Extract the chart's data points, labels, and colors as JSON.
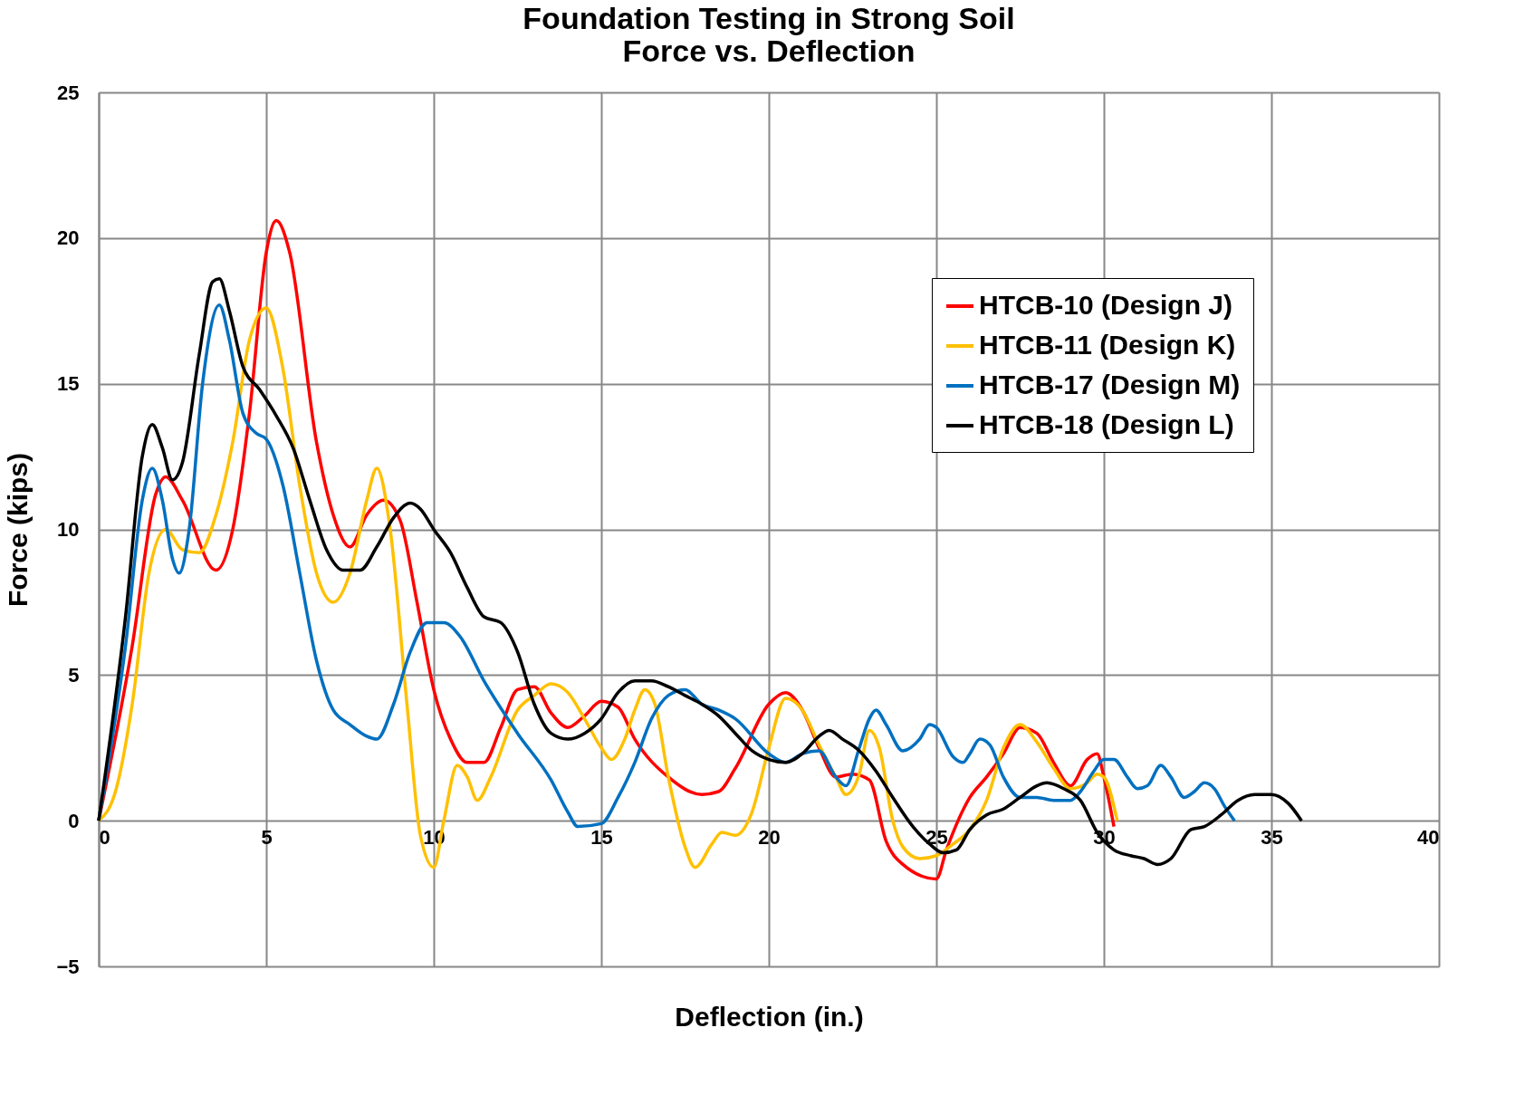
{
  "chart_data": {
    "type": "line",
    "title": "Foundation Testing in Strong Soil\nForce vs. Deflection",
    "xlabel": "Deflection (in.)",
    "ylabel": "Force (kips)",
    "xlim": [
      0,
      40
    ],
    "xticks": [
      0,
      5,
      10,
      15,
      20,
      25,
      30,
      35,
      40
    ],
    "ylim": [
      -5,
      25
    ],
    "yticks": [
      -5,
      0,
      5,
      10,
      15,
      20,
      25
    ],
    "grid": true,
    "legend": "top right",
    "marker": "none",
    "line_style": "solid",
    "series": [
      {
        "name": "HTCB-10 (Design J)",
        "color": "#ff0000",
        "x": [
          0,
          1,
          1.7,
          2,
          2.5,
          3.5,
          4,
          4.5,
          5,
          5.3,
          5.7,
          6.5,
          7,
          7.5,
          8,
          8.5,
          9,
          9.5,
          10,
          10.5,
          11,
          11.5,
          12,
          12.5,
          13,
          13.5,
          14,
          14.5,
          15,
          15.5,
          16,
          17,
          18,
          18.5,
          19,
          20,
          20.5,
          21,
          21.5,
          22,
          22.5,
          23,
          23.5,
          24,
          25,
          25.3,
          26,
          26.5,
          27,
          27.5,
          28,
          28.5,
          29,
          29.5,
          29.8,
          30,
          30.3
        ],
        "values": [
          0,
          6,
          11.2,
          11.8,
          11,
          8.6,
          10,
          14,
          19.5,
          20.6,
          19.5,
          13,
          10.5,
          9.4,
          10.5,
          11,
          10.3,
          7.5,
          4.5,
          2.8,
          2,
          2,
          3.2,
          4.5,
          4.6,
          3.7,
          3.2,
          3.6,
          4.1,
          3.9,
          2.8,
          1.5,
          0.9,
          1,
          1.8,
          4,
          4.4,
          3.8,
          2.5,
          1.5,
          1.6,
          1.4,
          -0.7,
          -1.5,
          -2,
          -1,
          0.8,
          1.5,
          2.3,
          3.2,
          3,
          2,
          1.2,
          2.1,
          2.3,
          1.5,
          -0.2
        ]
      },
      {
        "name": "HTCB-11 (Design K)",
        "color": "#ffc000",
        "x": [
          0,
          0.5,
          1,
          1.5,
          2,
          2.5,
          3,
          3.5,
          4,
          4.5,
          5,
          5.5,
          6,
          6.5,
          7,
          7.5,
          8,
          8.3,
          8.7,
          9.2,
          9.6,
          10,
          10.3,
          10.7,
          11,
          11.3,
          11.7,
          12.5,
          13,
          13.5,
          14,
          14.5,
          15,
          15.3,
          15.7,
          16,
          16.3,
          16.6,
          17,
          17.5,
          17.8,
          18.3,
          18.6,
          19,
          19.5,
          20,
          20.5,
          21,
          21.5,
          22,
          22.3,
          22.7,
          23,
          23.3,
          23.7,
          24,
          24.5,
          25,
          25.5,
          26,
          26.5,
          27,
          27.5,
          28,
          28.5,
          29,
          29.5,
          29.8,
          30,
          30.4
        ],
        "values": [
          0,
          1,
          4,
          8.5,
          10,
          9.3,
          9.2,
          10.5,
          13,
          16.5,
          17.6,
          15.5,
          11.5,
          8.5,
          7.5,
          8.5,
          11,
          12.1,
          10,
          4,
          -0.5,
          -1.6,
          0,
          1.9,
          1.5,
          0.7,
          1.5,
          3.8,
          4.3,
          4.7,
          4.4,
          3.5,
          2.5,
          2.1,
          2.8,
          3.8,
          4.5,
          4,
          1.5,
          -0.9,
          -1.6,
          -0.8,
          -0.4,
          -0.5,
          0.3,
          2.5,
          4.2,
          3.8,
          2.6,
          1.5,
          0.9,
          1.6,
          3.1,
          2.5,
          0,
          -0.9,
          -1.3,
          -1.2,
          -0.8,
          -0.3,
          0.7,
          2.5,
          3.3,
          2.7,
          1.8,
          1.1,
          1.3,
          1.6,
          1.5,
          0
        ]
      },
      {
        "name": "HTCB-17 (Design M)",
        "color": "#0070c0",
        "x": [
          0,
          0.8,
          1.3,
          1.6,
          1.9,
          2.2,
          2.4,
          2.7,
          3.1,
          3.6,
          3.9,
          4.3,
          4.7,
          5,
          5.5,
          6,
          6.5,
          7,
          7.5,
          8,
          8.3,
          8.8,
          9.3,
          9.8,
          10.3,
          10.8,
          11.5,
          12.5,
          13.5,
          14,
          14.3,
          15,
          15.5,
          16,
          16.5,
          17,
          17.5,
          18,
          18.5,
          19,
          20,
          20.5,
          21,
          21.5,
          22,
          22.3,
          22.7,
          23,
          23.2,
          23.5,
          24,
          24.5,
          24.8,
          25,
          25.5,
          25.8,
          26,
          26.3,
          26.6,
          27,
          27.5,
          28,
          28.5,
          29,
          29.3,
          29.7,
          30,
          30.3,
          30.7,
          31,
          31.3,
          31.7,
          32,
          32.4,
          32.7,
          33,
          33.3,
          33.6,
          33.9
        ],
        "values": [
          0,
          6,
          11,
          12.1,
          11,
          9,
          8.5,
          10,
          15,
          17.7,
          16.5,
          14,
          13.3,
          13.1,
          11.5,
          8.5,
          5.5,
          3.8,
          3.3,
          2.9,
          2.8,
          4,
          5.8,
          6.8,
          6.8,
          6.3,
          4.8,
          3,
          1.4,
          0.3,
          -0.2,
          -0.1,
          0.8,
          2,
          3.5,
          4.3,
          4.5,
          4,
          3.8,
          3.5,
          2.3,
          2,
          2.3,
          2.4,
          1.5,
          1.2,
          2.5,
          3.5,
          3.8,
          3.3,
          2.4,
          2.8,
          3.3,
          3.2,
          2.2,
          2,
          2.3,
          2.8,
          2.6,
          1.5,
          0.8,
          0.8,
          0.7,
          0.7,
          1,
          1.7,
          2.1,
          2.1,
          1.5,
          1.1,
          1.2,
          1.9,
          1.5,
          0.8,
          1,
          1.3,
          1.1,
          0.5,
          0
        ]
      },
      {
        "name": "HTCB-18 (Design L)",
        "color": "#000000",
        "x": [
          0,
          0.8,
          1.3,
          1.6,
          1.9,
          2.2,
          2.5,
          3,
          3.4,
          3.6,
          3.9,
          4.3,
          4.8,
          5.3,
          5.8,
          6.3,
          6.8,
          7.3,
          7.8,
          8.3,
          8.8,
          9.3,
          9.6,
          10,
          10.5,
          11,
          11.5,
          12,
          12.5,
          13,
          13.5,
          14,
          14.5,
          15,
          15.5,
          16,
          16.5,
          17,
          17.5,
          18,
          18.5,
          19,
          19.5,
          20,
          20.5,
          21,
          21.5,
          21.8,
          22.2,
          22.7,
          23.2,
          23.7,
          24.3,
          24.8,
          25.2,
          25.6,
          26,
          26.5,
          27,
          27.5,
          28,
          28.3,
          28.8,
          29.3,
          29.8,
          30.3,
          30.8,
          31.2,
          31.6,
          32,
          32.6,
          33,
          33.5,
          34,
          34.5,
          35,
          35.5,
          35.9
        ],
        "values": [
          0,
          7,
          12.5,
          13.6,
          12.8,
          11.7,
          12.3,
          16,
          18.5,
          18.6,
          17.5,
          15.6,
          14.8,
          13.9,
          12.8,
          11,
          9.3,
          8.6,
          8.6,
          9.4,
          10.4,
          10.9,
          10.7,
          10,
          9.2,
          8,
          7,
          6.8,
          5.8,
          4,
          3,
          2.8,
          3,
          3.5,
          4.4,
          4.8,
          4.8,
          4.6,
          4.3,
          4,
          3.6,
          3,
          2.4,
          2.1,
          2,
          2.3,
          2.9,
          3.1,
          2.8,
          2.4,
          1.7,
          0.8,
          -0.2,
          -0.8,
          -1.1,
          -1,
          -0.3,
          0.2,
          0.4,
          0.8,
          1.2,
          1.3,
          1.1,
          0.7,
          -0.4,
          -1,
          -1.2,
          -1.3,
          -1.5,
          -1.3,
          -0.3,
          -0.2,
          0.2,
          0.7,
          0.9,
          0.9,
          0.6,
          0
        ]
      }
    ]
  }
}
